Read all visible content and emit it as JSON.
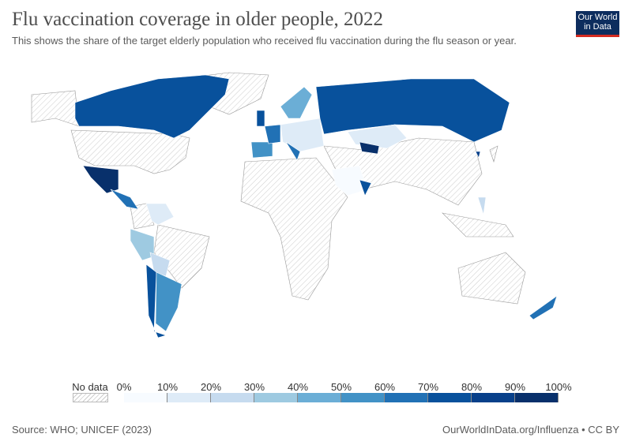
{
  "header": {
    "title": "Flu vaccination coverage in older people, 2022",
    "subtitle": "This shows the share of the target elderly population who received flu vaccination during the flu season or year.",
    "logo": "Our World in Data"
  },
  "legend": {
    "no_data": "No data",
    "labels": [
      "0%",
      "10%",
      "20%",
      "30%",
      "40%",
      "50%",
      "60%",
      "70%",
      "80%",
      "90%",
      "100%"
    ],
    "colors": [
      "#f7fbff",
      "#deebf7",
      "#c6dbef",
      "#9ecae1",
      "#6baed6",
      "#4292c6",
      "#2171b5",
      "#08519c",
      "#08408a",
      "#08306b"
    ]
  },
  "footer": {
    "source": "Source: WHO; UNICEF (2023)",
    "link": "OurWorldInData.org/Influenza • CC BY"
  },
  "regions": [
    {
      "name": "Canada",
      "bin": 7
    },
    {
      "name": "Mexico",
      "bin": 9
    },
    {
      "name": "Central America",
      "bin": 6
    },
    {
      "name": "Venezuela",
      "bin": 1
    },
    {
      "name": "Peru",
      "bin": 3
    },
    {
      "name": "Bolivia",
      "bin": 2
    },
    {
      "name": "Chile",
      "bin": 7
    },
    {
      "name": "Argentina",
      "bin": 5
    },
    {
      "name": "Spain",
      "bin": 5
    },
    {
      "name": "France",
      "bin": 6
    },
    {
      "name": "United Kingdom",
      "bin": 7
    },
    {
      "name": "Scandinavia",
      "bin": 4
    },
    {
      "name": "Central Europe",
      "bin": 1
    },
    {
      "name": "Italy",
      "bin": 6
    },
    {
      "name": "Russia",
      "bin": 7
    },
    {
      "name": "Kazakhstan",
      "bin": 1
    },
    {
      "name": "Uzbekistan",
      "bin": 9
    },
    {
      "name": "Saudi Arabia",
      "bin": 0
    },
    {
      "name": "Oman",
      "bin": 7
    },
    {
      "name": "Philippines",
      "bin": 2
    },
    {
      "name": "South Korea",
      "bin": 8
    },
    {
      "name": "New Zealand",
      "bin": 6
    }
  ]
}
